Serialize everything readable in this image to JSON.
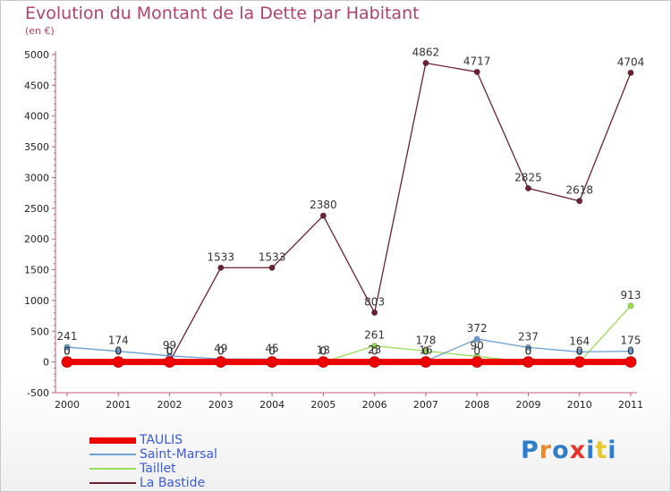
{
  "title": "Evolution du Montant de la Dette par Habitant",
  "subtitle": "(en €)",
  "logo_text": "Proxiti",
  "chart_data": {
    "type": "line",
    "title": "Evolution du Montant de la Dette par Habitant",
    "subtitle": "(en €)",
    "xlabel": "",
    "ylabel": "",
    "x": [
      "2000",
      "2001",
      "2002",
      "2003",
      "2004",
      "2005",
      "2006",
      "2007",
      "2008",
      "2009",
      "2010",
      "2011"
    ],
    "ylim": [
      -500,
      5000
    ],
    "yticks": [
      -500,
      0,
      500,
      1000,
      1500,
      2000,
      2500,
      3000,
      3500,
      4000,
      4500,
      5000
    ],
    "grid": false,
    "legend_position": "bottom-left",
    "series": [
      {
        "name": "TAULIS",
        "color": "#ee0000",
        "width": 7,
        "values": [
          0,
          0,
          0,
          0,
          0,
          0,
          0,
          0,
          0,
          0,
          0,
          0
        ],
        "labels": [
          "0",
          "0",
          "0",
          "0",
          "0",
          "0",
          "0",
          "0",
          "0",
          "0",
          "0",
          "0"
        ]
      },
      {
        "name": "Saint-Marsal",
        "color": "#6a9fd4",
        "width": 1.3,
        "values": [
          241,
          174,
          99,
          49,
          45,
          13,
          23,
          16,
          372,
          237,
          164,
          175
        ],
        "labels": [
          "241",
          "174",
          "99",
          "49",
          "45",
          "13",
          "23",
          "16",
          "372",
          "237",
          "164",
          "175"
        ]
      },
      {
        "name": "Taillet",
        "color": "#99dd55",
        "width": 1.3,
        "values": [
          0,
          0,
          0,
          0,
          0,
          0,
          261,
          178,
          90,
          0,
          0,
          913
        ],
        "labels": [
          "0",
          "0",
          "0",
          "0",
          "0",
          "0",
          "261",
          "178",
          "90",
          "0",
          "0",
          "913"
        ]
      },
      {
        "name": "La Bastide",
        "color": "#6b2230",
        "width": 1.3,
        "values": [
          0,
          0,
          0,
          1533,
          1533,
          2380,
          803,
          4862,
          4717,
          2825,
          2618,
          4704
        ],
        "labels": [
          "0",
          "0",
          "0",
          "1533",
          "1533",
          "2380",
          "803",
          "4862",
          "4717",
          "2825",
          "2618",
          "4704"
        ]
      }
    ]
  }
}
